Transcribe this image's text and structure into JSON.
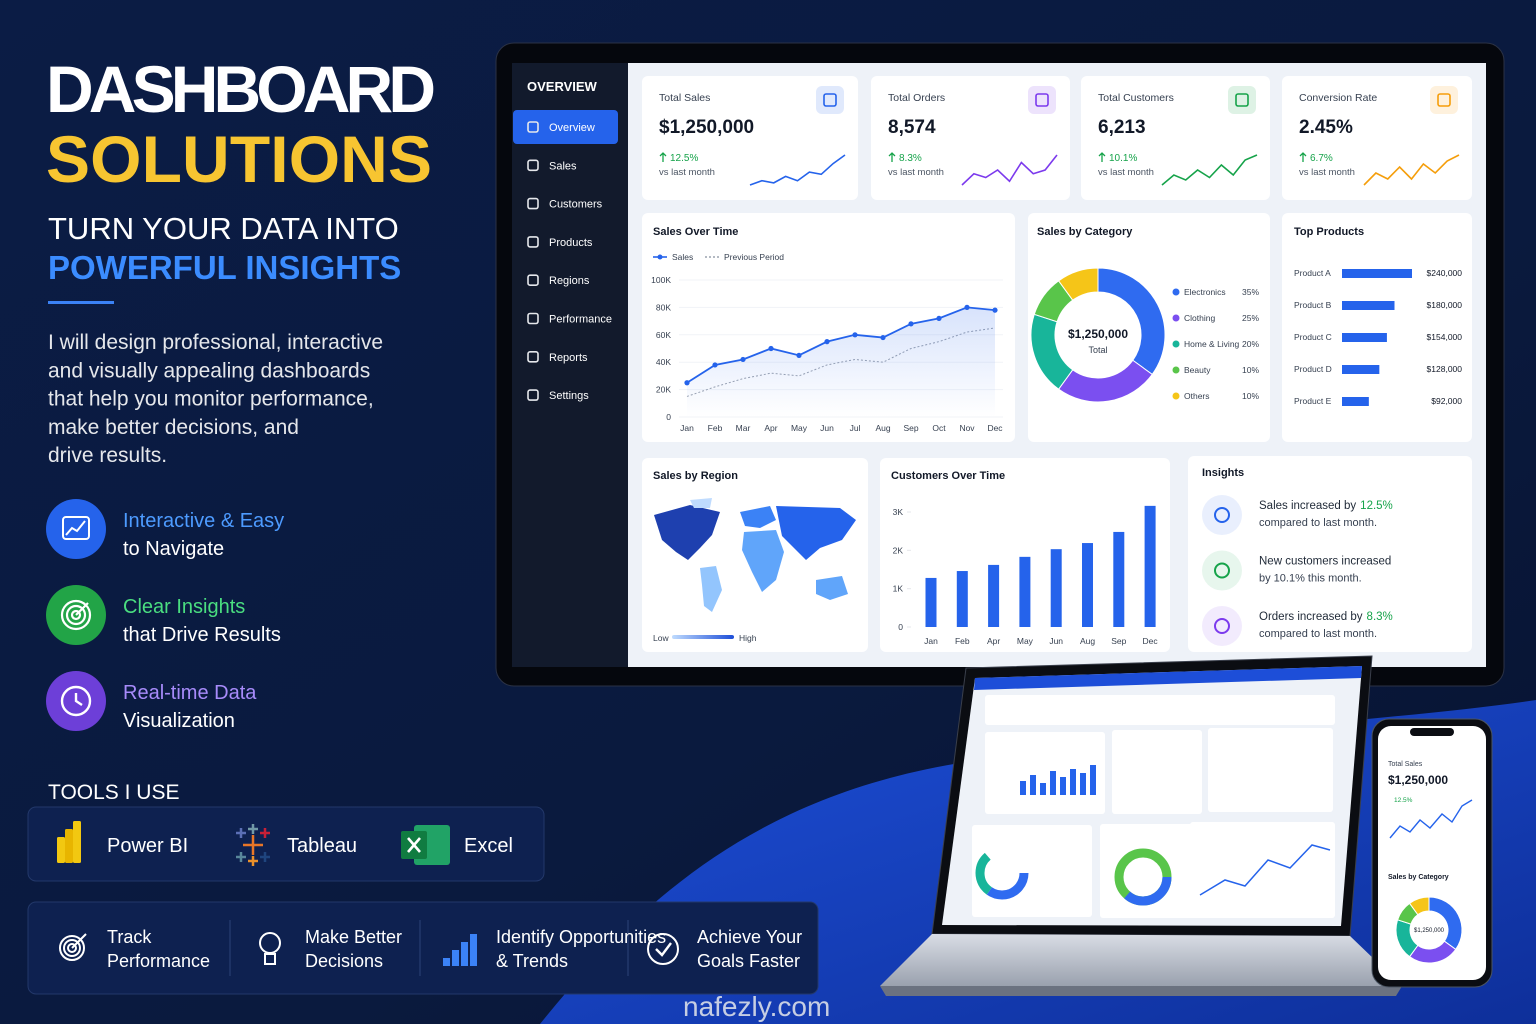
{
  "hero": {
    "title": [
      "DASHBOARD",
      "SOLUTIONS"
    ],
    "tagline": [
      "TURN YOUR DATA INTO",
      "POWERFUL INSIGHTS"
    ],
    "description": [
      "I will design professional, interactive",
      "and visually appealing dashboards",
      "that help you monitor performance,",
      "make better decisions, and",
      "drive results."
    ]
  },
  "features": [
    {
      "title": "Interactive & Easy",
      "text": "to Navigate",
      "color": "#2563eb",
      "text_color": "#4d9bff"
    },
    {
      "title": "Clear Insights",
      "text": "that Drive Results",
      "color": "#22a447",
      "text_color": "#4ade80"
    },
    {
      "title": "Real-time Data",
      "text": "Visualization",
      "color": "#6d3fd8",
      "text_color": "#a78bfa"
    }
  ],
  "tools": {
    "heading": "TOOLS I USE",
    "items": [
      "Power BI",
      "Tableau",
      "Excel"
    ]
  },
  "benefits": [
    [
      "Track",
      "Performance"
    ],
    [
      "Make Better",
      "Decisions"
    ],
    [
      "Identify Opportunities",
      "& Trends"
    ],
    [
      "Achieve Your",
      "Goals Faster"
    ]
  ],
  "dashboard": {
    "sidebar_heading": "OVERVIEW",
    "menu": [
      "Overview",
      "Sales",
      "Customers",
      "Products",
      "Regions",
      "Performance",
      "Reports",
      "Settings"
    ],
    "kpis": [
      {
        "label": "Total Sales",
        "value": "$1,250,000",
        "change": "12.5%",
        "note": "vs last month",
        "color": "#2563eb",
        "trend": [
          2,
          3,
          2.5,
          4,
          3,
          5,
          4.5,
          7,
          9
        ]
      },
      {
        "label": "Total Orders",
        "value": "8,574",
        "change": "8.3%",
        "note": "vs last month",
        "color": "#7c3aed",
        "trend": [
          2,
          3.5,
          3,
          4,
          2.5,
          5,
          3.5,
          4,
          6
        ]
      },
      {
        "label": "Total Customers",
        "value": "6,213",
        "change": "10.1%",
        "note": "vs last month",
        "color": "#16a34a",
        "trend": [
          2,
          4,
          3,
          5,
          3.5,
          6,
          4,
          7,
          8
        ]
      },
      {
        "label": "Conversion Rate",
        "value": "2.45%",
        "change": "6.7%",
        "note": "vs last month",
        "color": "#f59e0b",
        "trend": [
          2,
          4,
          3,
          5,
          3,
          5.5,
          4,
          6,
          7
        ]
      }
    ],
    "region_map": {
      "title": "Sales by Region",
      "legend": [
        "Low",
        "High"
      ]
    },
    "insights": {
      "title": "Insights",
      "items": [
        {
          "text": "Sales increased by",
          "highlight": "12.5%",
          "line2": "compared to last month."
        },
        {
          "text": "New customers increased",
          "line2": "by 10.1% this month."
        },
        {
          "text": "Orders increased by",
          "highlight": "8.3%",
          "line2": "compared to last month."
        }
      ]
    }
  },
  "chart_data": [
    {
      "type": "line",
      "title": "Sales Over Time",
      "categories": [
        "Jan",
        "Feb",
        "Mar",
        "Apr",
        "May",
        "Jun",
        "Jul",
        "Aug",
        "Sep",
        "Oct",
        "Nov",
        "Dec"
      ],
      "series": [
        {
          "name": "Sales",
          "color": "#2563eb",
          "values": [
            25000,
            38000,
            42000,
            50000,
            45000,
            55000,
            60000,
            58000,
            68000,
            72000,
            80000,
            78000
          ]
        },
        {
          "name": "Previous Period",
          "color": "#9ca3af",
          "dashed": true,
          "values": [
            15000,
            22000,
            28000,
            32000,
            30000,
            38000,
            42000,
            40000,
            50000,
            55000,
            62000,
            65000
          ]
        }
      ],
      "ylim": [
        0,
        100000
      ],
      "yticks": [
        0,
        {
          "value": 20000,
          "label": "20K"
        },
        {
          "value": 40000,
          "label": "40K"
        },
        {
          "value": 60000,
          "label": "60K"
        },
        {
          "value": 80000,
          "label": "80K"
        },
        {
          "value": 100000,
          "label": "100K"
        }
      ],
      "grid": true
    },
    {
      "type": "donut",
      "title": "Sales by Category",
      "center_value": "$1,250,000",
      "center_label": "Total",
      "categories": [
        "Electronics",
        "Clothing",
        "Home & Living",
        "Beauty",
        "Others"
      ],
      "values": [
        35,
        25,
        20,
        10,
        10
      ],
      "value_labels": [
        "35%",
        "25%",
        "20%",
        "10%",
        "10%"
      ],
      "colors": [
        "#2f6bf0",
        "#7b4ff0",
        "#18b59a",
        "#59c54a",
        "#f5c518"
      ]
    },
    {
      "type": "hbar",
      "title": "Top Products",
      "categories": [
        "Product A",
        "Product B",
        "Product C",
        "Product D",
        "Product E"
      ],
      "values": [
        240000,
        180000,
        154000,
        128000,
        92000
      ],
      "value_labels": [
        "$240,000",
        "$180,000",
        "$154,000",
        "$128,000",
        "$92,000"
      ],
      "color": "#2563eb"
    },
    {
      "type": "bar",
      "title": "Customers Over Time",
      "categories": [
        "Jan",
        "Feb",
        "Apr",
        "May",
        "Jun",
        "Aug",
        "Sep",
        "Dec"
      ],
      "values": [
        1280,
        1460,
        1620,
        1830,
        2030,
        2190,
        2480,
        3160
      ],
      "ylim": [
        0,
        3300
      ],
      "yticks": [
        0,
        {
          "value": 1000,
          "label": "1K"
        },
        {
          "value": 2000,
          "label": "2K"
        },
        {
          "value": 3000,
          "label": "3K"
        }
      ],
      "color": "#2563eb"
    }
  ],
  "watermark": "nafezly.com"
}
